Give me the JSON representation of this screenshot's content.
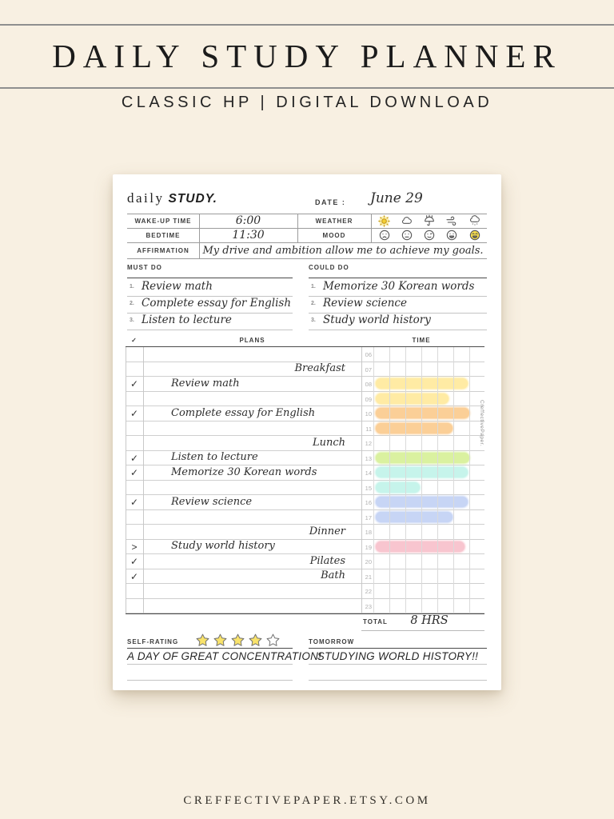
{
  "header": {
    "title": "DAILY STUDY PLANNER",
    "subtitle": "CLASSIC HP | DIGITAL DOWNLOAD"
  },
  "footer": {
    "url": "CREFFECTIVEPAPER.ETSY.COM"
  },
  "page": {
    "brand": "daily",
    "brand_bold": "STUDY.",
    "date_label": "DATE :",
    "date_value": "June 29",
    "watermark": "CreffectivePaper.",
    "info": {
      "wake_label": "WAKE-UP TIME",
      "wake_value": "6:00",
      "bed_label": "BEDTIME",
      "bed_value": "11:30",
      "weather_label": "WEATHER",
      "mood_label": "MOOD",
      "affirmation_label": "AFFIRMATION",
      "affirmation_value": "My drive and ambition allow me to achieve my goals.",
      "weather_icons": [
        "sun",
        "cloud",
        "umbrella-rain",
        "wind",
        "snow-cloud"
      ],
      "weather_selected": "sun",
      "mood_icons": [
        "sad",
        "neutral",
        "wink",
        "grin",
        "laugh"
      ],
      "mood_selected": "laugh"
    },
    "must_do": {
      "label": "MUST DO",
      "items": [
        "Review math",
        "Complete essay for English",
        "Listen to lecture"
      ]
    },
    "could_do": {
      "label": "COULD DO",
      "items": [
        "Memorize 30 Korean words",
        "Review science",
        "Study world history"
      ]
    },
    "plans": {
      "check_header": "✓",
      "plans_header": "PLANS",
      "time_header": "TIME",
      "total_label": "TOTAL",
      "total_value": "8 HRS",
      "rows": [
        {
          "hour": "06"
        },
        {
          "hour": "07",
          "text": "Breakfast",
          "align": "right"
        },
        {
          "hour": "08",
          "check": "✓",
          "text": "Review math",
          "align": "left",
          "bar": {
            "color": "#FFEAA0",
            "frac": 0.98
          }
        },
        {
          "hour": "09",
          "bar": {
            "color": "#FFEAA0",
            "frac": 0.78
          }
        },
        {
          "hour": "10",
          "check": "✓",
          "text": "Complete essay for English",
          "align": "left",
          "bar": {
            "color": "#FBCD92",
            "frac": 1.0
          }
        },
        {
          "hour": "11",
          "bar": {
            "color": "#FBCD92",
            "frac": 0.82
          }
        },
        {
          "hour": "12",
          "text": "Lunch",
          "align": "right"
        },
        {
          "hour": "13",
          "check": "✓",
          "text": "Listen to lecture",
          "align": "left",
          "bar": {
            "color": "#D9F19B",
            "frac": 1.0
          }
        },
        {
          "hour": "14",
          "check": "✓",
          "text": "Memorize 30 Korean words",
          "align": "left",
          "bar": {
            "color": "#C4F4EA",
            "frac": 0.98
          }
        },
        {
          "hour": "15",
          "bar": {
            "color": "#C4F4EA",
            "frac": 0.47
          }
        },
        {
          "hour": "16",
          "check": "✓",
          "text": "Review science",
          "align": "left",
          "bar": {
            "color": "#C5D3F5",
            "frac": 0.98
          }
        },
        {
          "hour": "17",
          "bar": {
            "color": "#C5D3F5",
            "frac": 0.82
          }
        },
        {
          "hour": "18",
          "text": "Dinner",
          "align": "right"
        },
        {
          "hour": "19",
          "check": ">",
          "text": "Study world history",
          "align": "left",
          "bar": {
            "color": "#F8C2CD",
            "frac": 0.95
          }
        },
        {
          "hour": "20",
          "check": "✓",
          "text": "Pilates",
          "align": "right"
        },
        {
          "hour": "21",
          "check": "✓",
          "text": "Bath",
          "align": "right"
        },
        {
          "hour": "22"
        },
        {
          "hour": "23"
        }
      ]
    },
    "rating": {
      "label": "SELF-RATING",
      "stars_filled": 4,
      "stars_total": 5,
      "note": "A DAY OF GREAT CONCENTRATION!"
    },
    "tomorrow": {
      "label": "TOMORROW",
      "note": "STUDYING WORLD HISTORY!!"
    }
  },
  "colors": {
    "background": "#F8F0E2",
    "page": "#FFFFFF",
    "selected_yellow": "#F6DC4C",
    "star_fill": "#F9E36B",
    "bar_yellow": "#FFEAA0",
    "bar_orange": "#FBCD92",
    "bar_green": "#D9F19B",
    "bar_cyan": "#C4F4EA",
    "bar_blue": "#C5D3F5",
    "bar_pink": "#F8C2CD"
  }
}
